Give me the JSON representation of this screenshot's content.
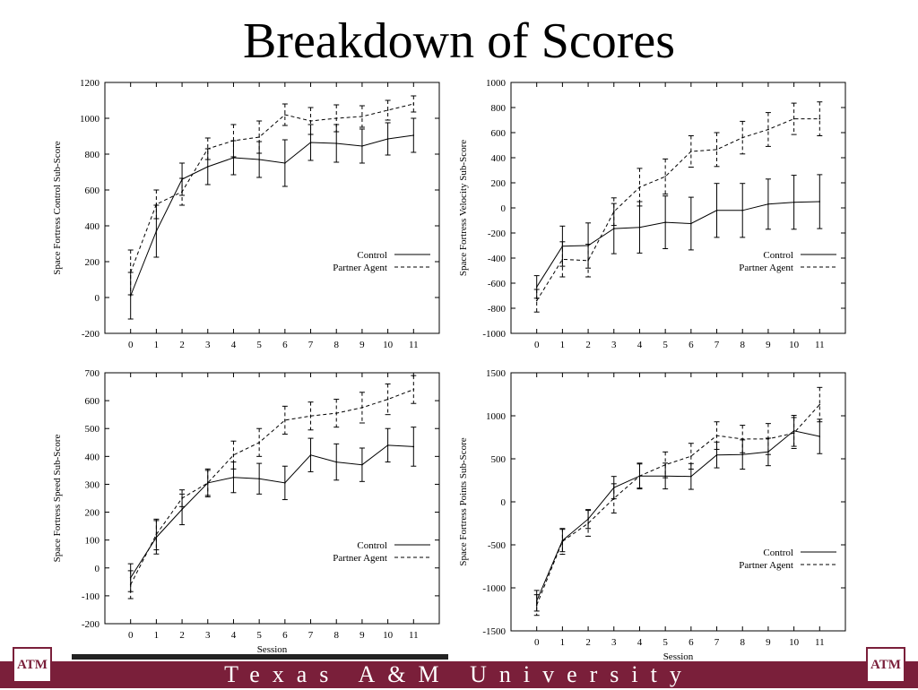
{
  "slide": {
    "title": "Breakdown of Scores"
  },
  "footer": {
    "text": "Texas A&M University",
    "logo_text": "ATM"
  },
  "colors": {
    "maroon": "#7a1f3a"
  },
  "chart_data": [
    {
      "type": "line",
      "ylabel": "Space Fortress Control Sub-Score",
      "xlabel": "",
      "xlim": [
        -1,
        12
      ],
      "ylim": [
        -200,
        1200
      ],
      "yticks": [
        -200,
        0,
        200,
        400,
        600,
        800,
        1000,
        1200
      ],
      "x": [
        0,
        1,
        2,
        3,
        4,
        5,
        6,
        7,
        8,
        9,
        10,
        11
      ],
      "legend_position": "lower-right",
      "series": [
        {
          "name": "Control",
          "style": "solid",
          "values": [
            10,
            370,
            660,
            730,
            780,
            770,
            750,
            865,
            860,
            845,
            885,
            905
          ],
          "err": [
            130,
            145,
            90,
            100,
            95,
            100,
            130,
            100,
            105,
            95,
            90,
            95
          ]
        },
        {
          "name": "Partner Agent",
          "style": "dashed",
          "values": [
            140,
            520,
            590,
            830,
            875,
            895,
            1020,
            985,
            1000,
            1010,
            1045,
            1080
          ],
          "err": [
            125,
            80,
            75,
            60,
            90,
            90,
            60,
            75,
            75,
            60,
            55,
            45
          ]
        }
      ]
    },
    {
      "type": "line",
      "ylabel": "Space Fortress Velocity Sub-Score",
      "xlabel": "",
      "xlim": [
        -1,
        12
      ],
      "ylim": [
        -1000,
        1000
      ],
      "yticks": [
        -1000,
        -800,
        -600,
        -400,
        -200,
        0,
        200,
        400,
        600,
        800,
        1000
      ],
      "x": [
        0,
        1,
        2,
        3,
        4,
        5,
        6,
        7,
        8,
        9,
        10,
        11
      ],
      "legend_position": "lower-right",
      "series": [
        {
          "name": "Control",
          "style": "solid",
          "values": [
            -630,
            -305,
            -300,
            -165,
            -155,
            -115,
            -125,
            -20,
            -20,
            30,
            45,
            50
          ],
          "err": [
            90,
            160,
            180,
            200,
            205,
            210,
            210,
            215,
            215,
            200,
            215,
            215
          ]
        },
        {
          "name": "Partner Agent",
          "style": "dashed",
          "values": [
            -740,
            -410,
            -420,
            -30,
            165,
            250,
            450,
            465,
            560,
            625,
            710,
            710
          ],
          "err": [
            90,
            140,
            130,
            110,
            150,
            140,
            125,
            135,
            130,
            135,
            125,
            135
          ]
        }
      ]
    },
    {
      "type": "line",
      "ylabel": "Space Fortress Speed Sub-Score",
      "xlabel": "Session",
      "xlim": [
        -1,
        12
      ],
      "ylim": [
        -200,
        700
      ],
      "yticks": [
        -200,
        -100,
        0,
        100,
        200,
        300,
        400,
        500,
        600,
        700
      ],
      "x": [
        0,
        1,
        2,
        3,
        4,
        5,
        6,
        7,
        8,
        9,
        10,
        11
      ],
      "legend_position": "lower-right",
      "series": [
        {
          "name": "Control",
          "style": "solid",
          "values": [
            -35,
            110,
            210,
            305,
            325,
            320,
            305,
            405,
            380,
            370,
            440,
            435
          ],
          "err": [
            50,
            60,
            55,
            45,
            55,
            55,
            60,
            60,
            65,
            60,
            60,
            70
          ]
        },
        {
          "name": "Partner Agent",
          "style": "dashed",
          "values": [
            -60,
            120,
            250,
            305,
            405,
            450,
            530,
            545,
            555,
            575,
            605,
            640
          ],
          "err": [
            50,
            55,
            30,
            50,
            50,
            50,
            50,
            50,
            50,
            55,
            55,
            50
          ]
        }
      ]
    },
    {
      "type": "line",
      "ylabel": "Space Fortress Points Sub-Score",
      "xlabel": "Session",
      "xlim": [
        -1,
        12
      ],
      "ylim": [
        -1500,
        1500
      ],
      "yticks": [
        -1500,
        -1000,
        -500,
        0,
        500,
        1000,
        1500
      ],
      "x": [
        0,
        1,
        2,
        3,
        4,
        5,
        6,
        7,
        8,
        9,
        10,
        11
      ],
      "legend_position": "lower-right",
      "series": [
        {
          "name": "Control",
          "style": "solid",
          "values": [
            -1150,
            -450,
            -200,
            165,
            300,
            300,
            295,
            545,
            550,
            580,
            825,
            760
          ],
          "err": [
            120,
            130,
            110,
            130,
            140,
            150,
            150,
            150,
            170,
            160,
            180,
            200
          ]
        },
        {
          "name": "Partner Agent",
          "style": "dashed",
          "values": [
            -1200,
            -460,
            -250,
            40,
            300,
            430,
            530,
            770,
            730,
            730,
            800,
            1130
          ],
          "err": [
            120,
            150,
            150,
            170,
            150,
            150,
            150,
            160,
            160,
            180,
            180,
            200
          ]
        }
      ]
    }
  ]
}
